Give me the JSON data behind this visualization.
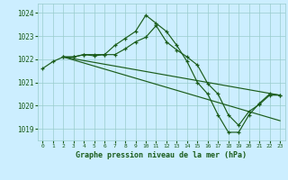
{
  "title": "",
  "xlabel": "Graphe pression niveau de la mer (hPa)",
  "bg_color": "#cceeff",
  "line_color": "#1a5c1a",
  "grid_color": "#99cccc",
  "ylim": [
    1018.5,
    1024.4
  ],
  "xlim": [
    -0.5,
    23.5
  ],
  "yticks": [
    1019,
    1020,
    1021,
    1022,
    1023,
    1024
  ],
  "xticks": [
    0,
    1,
    2,
    3,
    4,
    5,
    6,
    7,
    8,
    9,
    10,
    11,
    12,
    13,
    14,
    15,
    16,
    17,
    18,
    19,
    20,
    21,
    22,
    23
  ],
  "line1_x": [
    0,
    1,
    2,
    3,
    4,
    5,
    6,
    7,
    8,
    9,
    10,
    11,
    12,
    13,
    14,
    15,
    16,
    17,
    18,
    19,
    20,
    21,
    22,
    23
  ],
  "line1_y": [
    1021.6,
    1021.9,
    1022.1,
    1022.1,
    1022.2,
    1022.2,
    1022.2,
    1022.6,
    1022.9,
    1023.2,
    1023.9,
    1023.55,
    1023.2,
    1022.6,
    1021.9,
    1021.0,
    1020.5,
    1019.6,
    1018.85,
    1018.85,
    1019.6,
    1020.1,
    1020.5,
    1020.45
  ],
  "line2_x": [
    2,
    3,
    4,
    5,
    6,
    7,
    8,
    9,
    10,
    11,
    12,
    13,
    14,
    15,
    16,
    17,
    18,
    19,
    20,
    21,
    22,
    23
  ],
  "line2_y": [
    1022.1,
    1022.1,
    1022.2,
    1022.15,
    1022.2,
    1022.2,
    1022.45,
    1022.75,
    1022.95,
    1023.45,
    1022.75,
    1022.4,
    1022.1,
    1021.75,
    1020.95,
    1020.5,
    1019.6,
    1019.15,
    1019.75,
    1020.05,
    1020.45,
    1020.45
  ],
  "line3_x": [
    2,
    23
  ],
  "line3_y": [
    1022.1,
    1020.45
  ],
  "line4_x": [
    2,
    23
  ],
  "line4_y": [
    1022.1,
    1019.35
  ]
}
